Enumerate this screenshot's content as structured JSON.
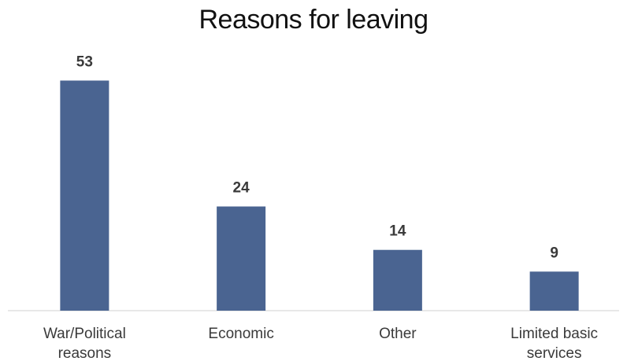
{
  "chart_data": {
    "type": "bar",
    "title": "Reasons for leaving",
    "categories": [
      [
        "War/Political",
        "reasons"
      ],
      [
        "Economic"
      ],
      [
        "Other"
      ],
      [
        "Limited basic",
        "services"
      ]
    ],
    "values": [
      53,
      24,
      14,
      9
    ],
    "xlabel": "",
    "ylabel": "",
    "ylim": [
      0,
      60
    ],
    "grid": false,
    "legend": "none",
    "bar_color": "#4a6491",
    "axis_color": "#d0d0d0"
  }
}
